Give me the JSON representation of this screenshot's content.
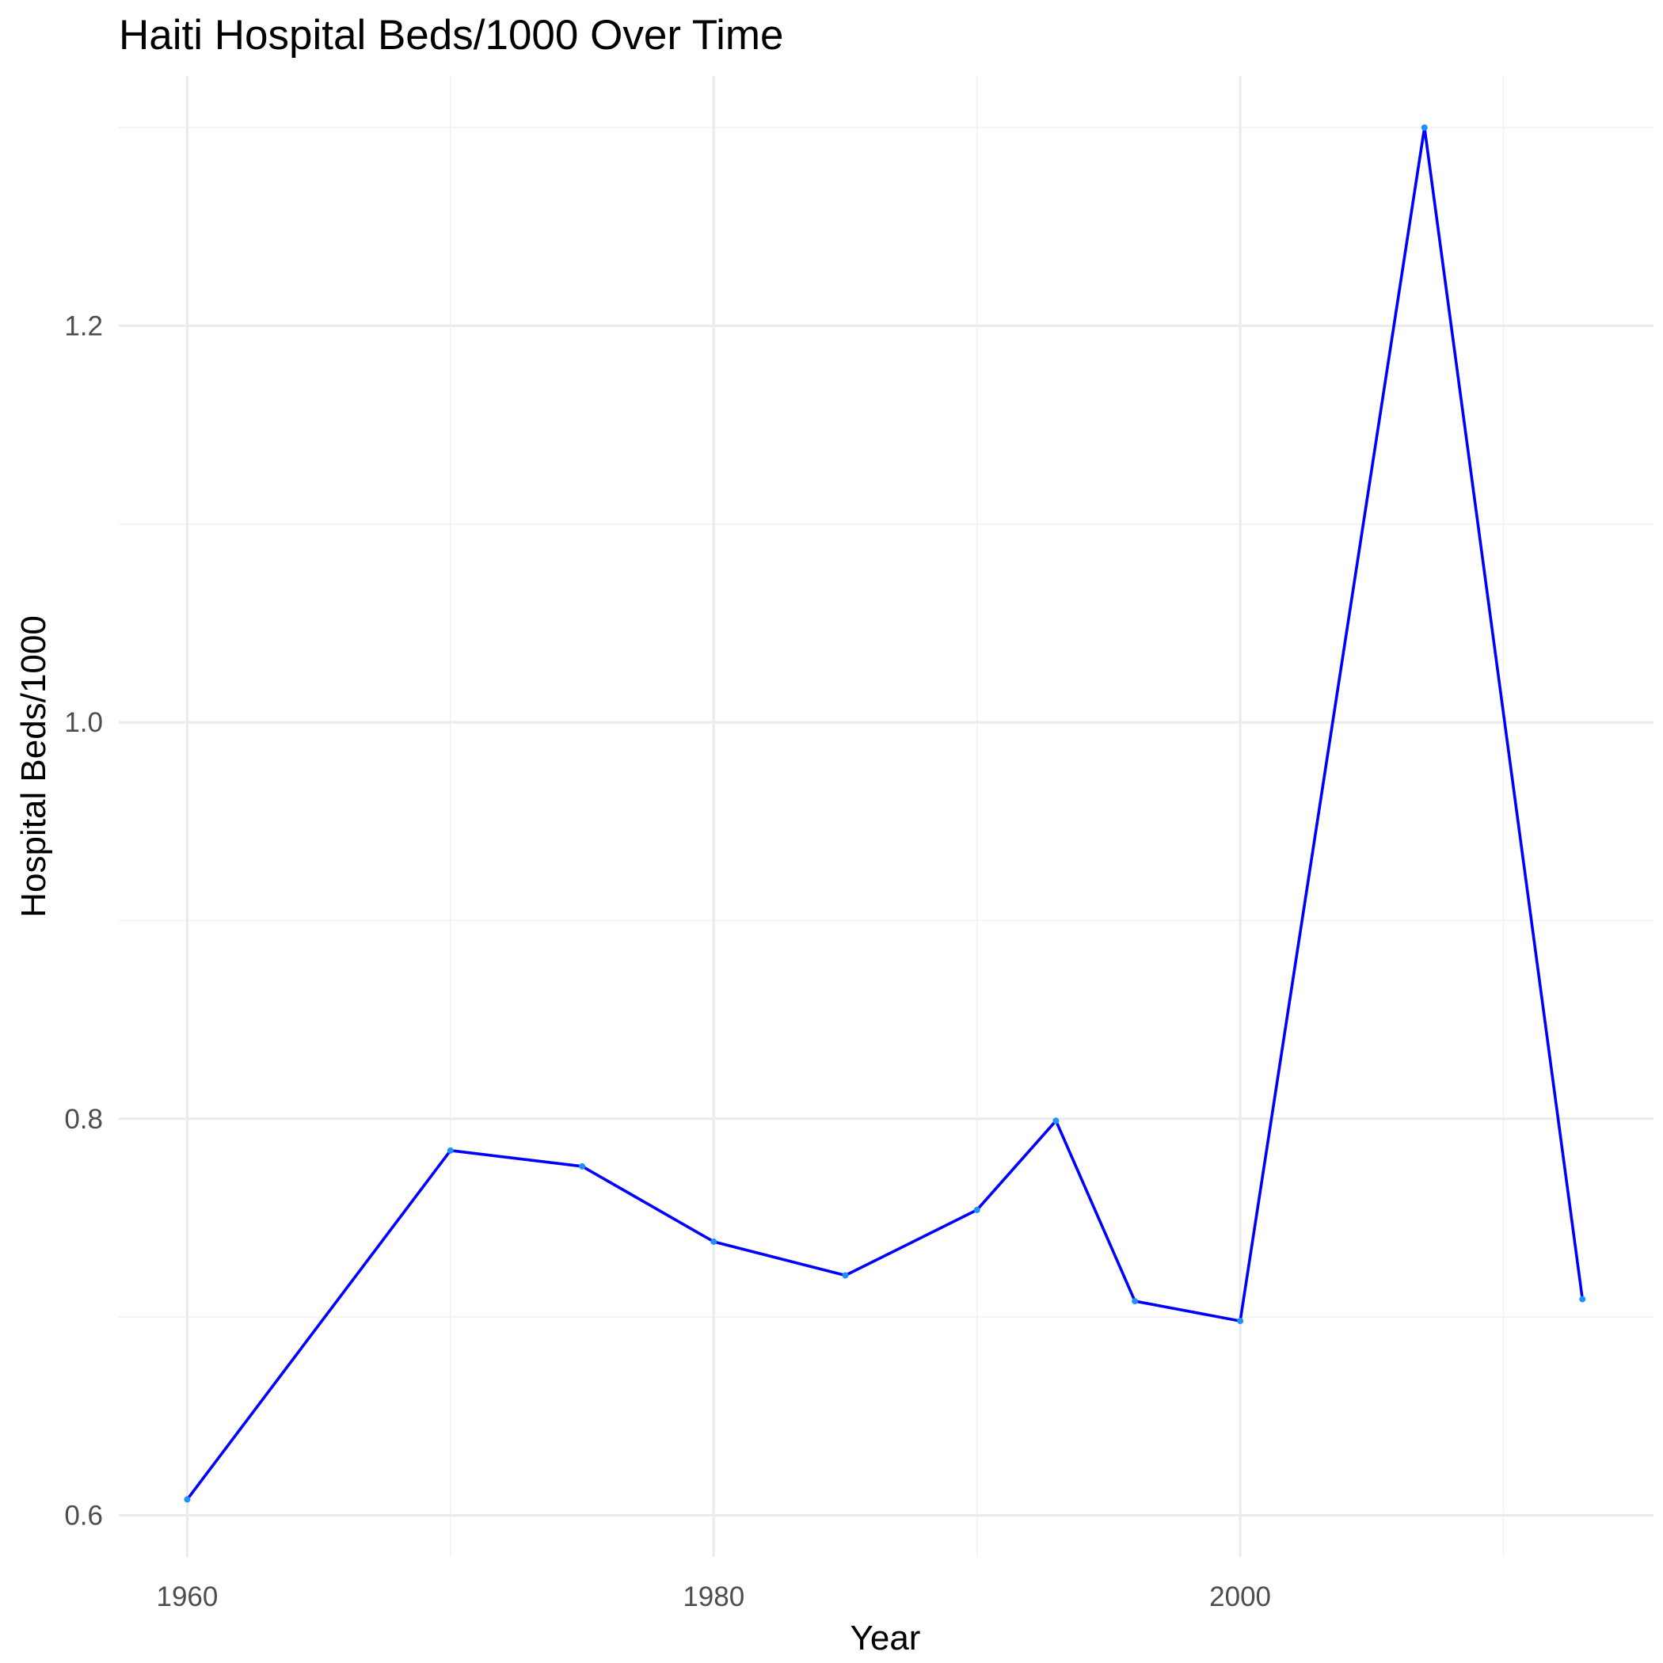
{
  "chart_data": {
    "type": "line",
    "title": "Haiti Hospital Beds/1000 Over Time",
    "xlabel": "Year",
    "ylabel": "Hospital Beds/1000",
    "xlim": [
      1957.4,
      2015.7
    ],
    "ylim": [
      0.579,
      1.326
    ],
    "x_ticks": [
      1960,
      1980,
      2000
    ],
    "x_tick_labels": [
      "1960",
      "1980",
      "2000"
    ],
    "x_minor_ticks": [
      1970,
      1990,
      2010
    ],
    "y_ticks": [
      0.6,
      0.8,
      1.0,
      1.2
    ],
    "y_tick_labels": [
      "0.6",
      "0.8",
      "1.0",
      "1.2"
    ],
    "y_minor_ticks": [
      0.7,
      0.9,
      1.1,
      1.3
    ],
    "grid": true,
    "legend": "none",
    "colors": {
      "line": "#0000ff",
      "point": "#1e90ff"
    },
    "series": [
      {
        "x": [
          1960,
          1970,
          1975,
          1980,
          1985,
          1990,
          1993,
          1996,
          2000,
          2007,
          2013
        ],
        "y": [
          0.608,
          0.784,
          0.776,
          0.738,
          0.721,
          0.754,
          0.799,
          0.708,
          0.698,
          1.3,
          0.709
        ]
      }
    ]
  }
}
